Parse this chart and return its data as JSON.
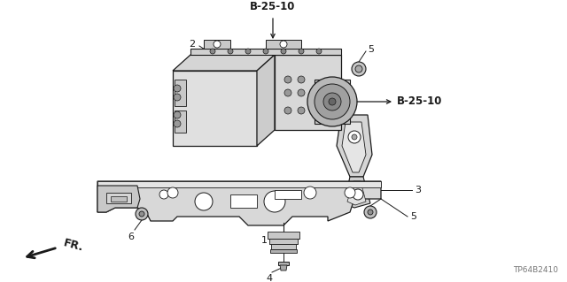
{
  "background_color": "#ffffff",
  "part_code_top": "B-25-10",
  "part_code_right": "B-25-10",
  "part_number": "TP64B2410",
  "color_line": "#1a1a1a",
  "color_fill_light": "#e8e8e8",
  "color_fill_mid": "#d0d0d0",
  "color_fill_dark": "#b0b0b0",
  "color_fill_white": "#ffffff",
  "figsize": [
    6.4,
    3.19
  ],
  "dpi": 100
}
